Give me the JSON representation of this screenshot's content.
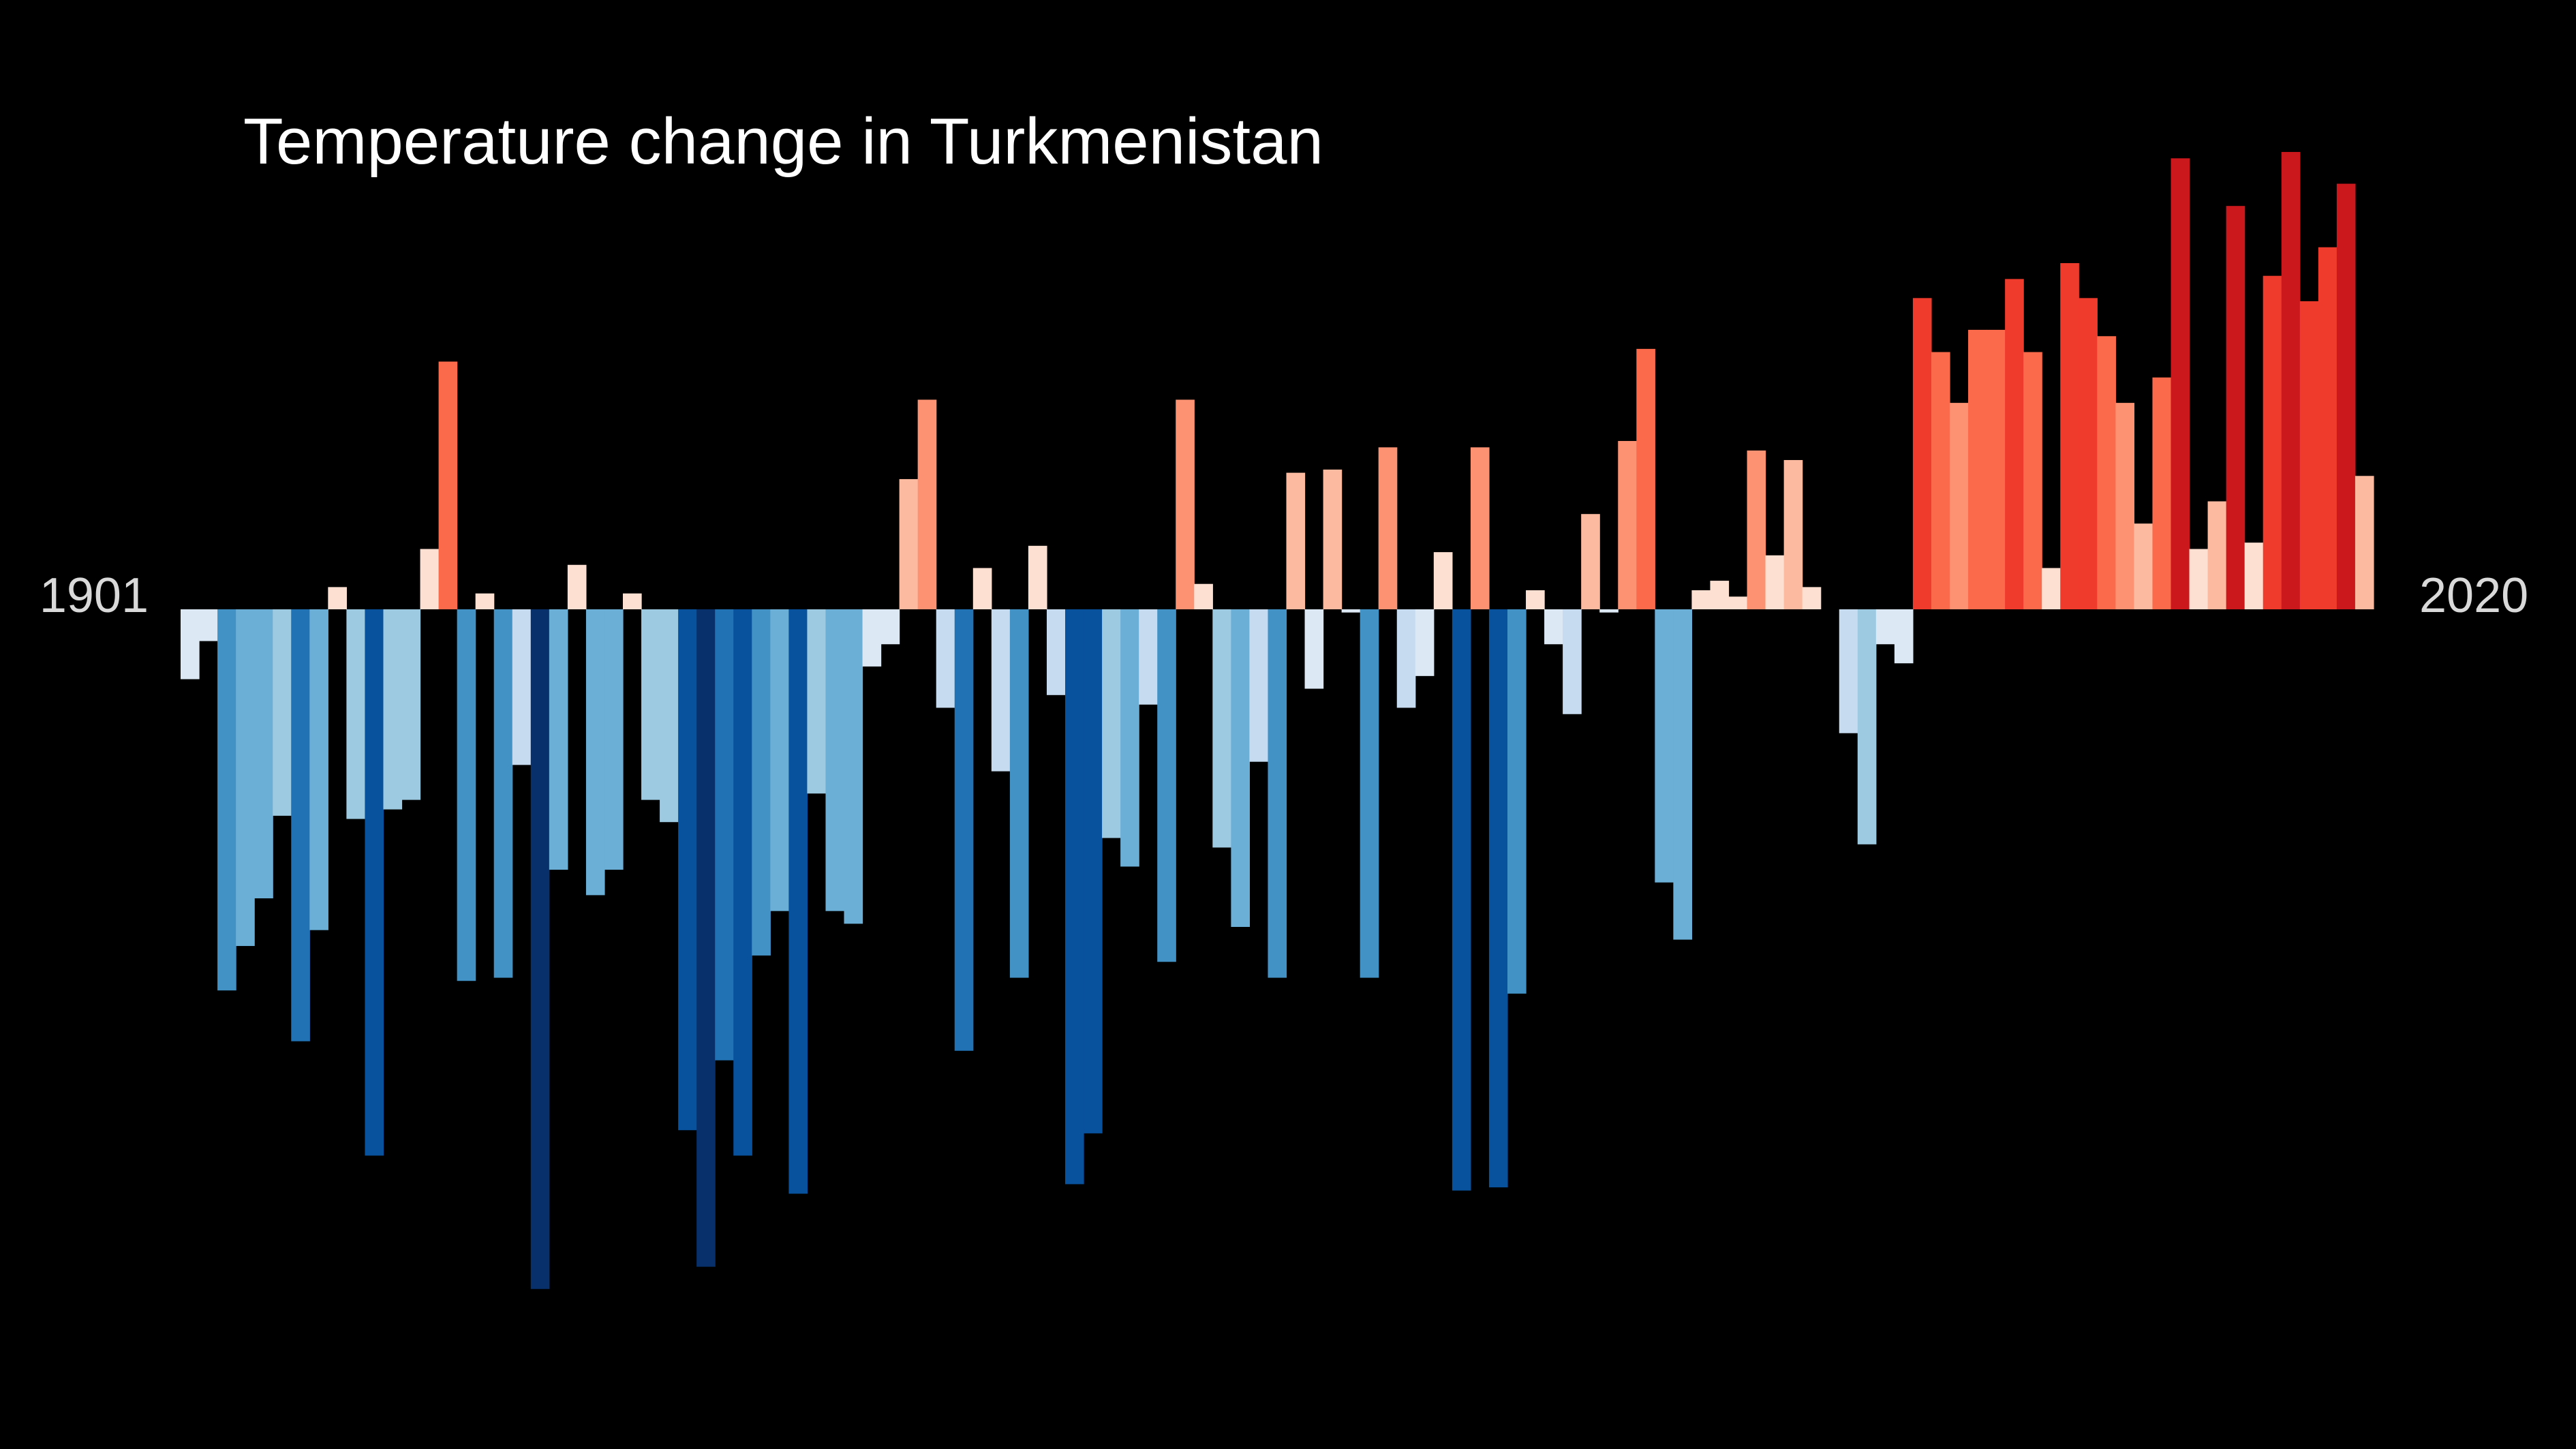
{
  "chart_data": {
    "type": "bar",
    "title": "Temperature change in Turkmenistan",
    "start_label": "1901",
    "end_label": "2020",
    "start_year": 1901,
    "end_year": 2020,
    "ylim": [
      -2.14,
      1.44
    ],
    "x": [
      1901,
      1902,
      1903,
      1904,
      1905,
      1906,
      1907,
      1908,
      1909,
      1910,
      1911,
      1912,
      1913,
      1914,
      1915,
      1916,
      1917,
      1918,
      1919,
      1920,
      1921,
      1922,
      1923,
      1924,
      1925,
      1926,
      1927,
      1928,
      1929,
      1930,
      1931,
      1932,
      1933,
      1934,
      1935,
      1936,
      1937,
      1938,
      1939,
      1940,
      1941,
      1942,
      1943,
      1944,
      1945,
      1946,
      1947,
      1948,
      1949,
      1950,
      1951,
      1952,
      1953,
      1954,
      1955,
      1956,
      1957,
      1958,
      1959,
      1960,
      1961,
      1962,
      1963,
      1964,
      1965,
      1966,
      1967,
      1968,
      1969,
      1970,
      1971,
      1972,
      1973,
      1974,
      1975,
      1976,
      1977,
      1978,
      1979,
      1980,
      1981,
      1982,
      1983,
      1984,
      1985,
      1986,
      1987,
      1988,
      1989,
      1990,
      1991,
      1992,
      1993,
      1994,
      1995,
      1996,
      1997,
      1998,
      1999,
      2000,
      2001,
      2002,
      2003,
      2004,
      2005,
      2006,
      2007,
      2008,
      2009,
      2010,
      2011,
      2012,
      2013,
      2014,
      2015,
      2016,
      2017,
      2018,
      2019,
      2020
    ],
    "values": [
      -0.22,
      -0.1,
      -1.2,
      -1.06,
      -0.91,
      -0.65,
      -1.36,
      -1.01,
      0.07,
      -0.66,
      -1.72,
      -0.63,
      -0.6,
      0.19,
      0.78,
      -1.17,
      0.05,
      -1.16,
      -0.49,
      -2.14,
      -0.82,
      0.14,
      -0.9,
      -0.82,
      0.05,
      -0.6,
      -0.67,
      -1.64,
      -2.07,
      -1.42,
      -1.72,
      -1.09,
      -0.95,
      -1.84,
      -0.58,
      -0.95,
      -0.99,
      -0.18,
      -0.11,
      0.41,
      0.66,
      -0.31,
      -1.39,
      0.13,
      -0.51,
      -1.16,
      0.2,
      -0.27,
      -1.81,
      -1.65,
      -0.72,
      -0.81,
      -0.3,
      -1.11,
      0.66,
      0.08,
      -0.75,
      -1,
      -0.48,
      -1.16,
      0.43,
      -0.25,
      0.44,
      -0.01,
      -1.16,
      0.51,
      -0.31,
      -0.21,
      0.18,
      -1.83,
      0.51,
      -1.82,
      -1.21,
      0.06,
      -0.11,
      -0.33,
      0.3,
      -0.01,
      0.53,
      0.82,
      -0.86,
      -1.04,
      0.06,
      0.09,
      0.04,
      0.5,
      0.17,
      0.47,
      0.07,
      0,
      -0.39,
      -0.74,
      -0.11,
      -0.17,
      0.98,
      0.81,
      0.65,
      0.88,
      0.88,
      1.04,
      0.81,
      0.13,
      1.09,
      0.98,
      0.86,
      0.65,
      0.27,
      0.73,
      1.42,
      0.19,
      0.34,
      1.27,
      0.21,
      1.05,
      1.44,
      0.97,
      1.14,
      1.34,
      0.42,
      0
    ],
    "colors": {
      "background": "#000000",
      "title_text": "#ffffff",
      "axis_text": "#d9d9d9",
      "cool_ramp": [
        "#dce9f5",
        "#c6dbef",
        "#9ecae1",
        "#6baed6",
        "#4292c6",
        "#2171b5",
        "#08519c",
        "#08306b"
      ],
      "warm_ramp": [
        "#fee0d2",
        "#fcbba1",
        "#fc9272",
        "#fb6a4a",
        "#ef3b2c",
        "#cb181d"
      ]
    }
  }
}
